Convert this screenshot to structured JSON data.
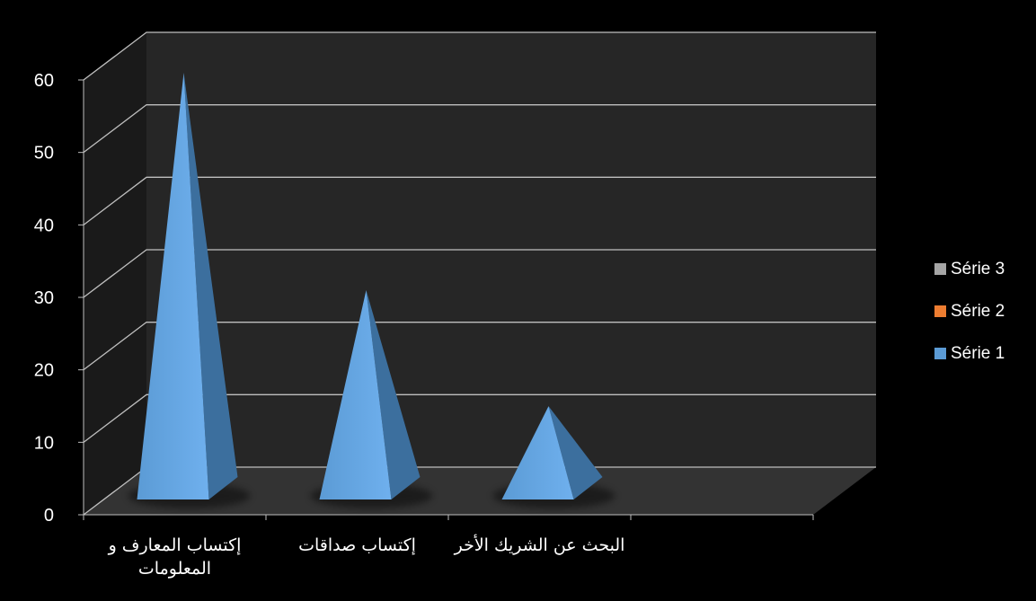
{
  "chart_data": {
    "type": "bar",
    "style": "3d-pyramid",
    "categories": [
      "إكتساب المعارف و المعلومات",
      "إكتساب صداقات",
      "البحث عن الشريك الأخر",
      ""
    ],
    "series": [
      {
        "name": "Série 1",
        "values": [
          60,
          30,
          14,
          null
        ],
        "color": "#5b9bd5"
      },
      {
        "name": "Série 2",
        "values": [
          null,
          null,
          null,
          null
        ],
        "color": "#ed7d31"
      },
      {
        "name": "Série 3",
        "values": [
          null,
          null,
          null,
          null
        ],
        "color": "#a5a5a5"
      }
    ],
    "y_ticks": [
      "0",
      "10",
      "20",
      "30",
      "40",
      "50",
      "60"
    ],
    "ylim": [
      0,
      60
    ],
    "grid": true,
    "legend_position": "right",
    "legend_order": [
      "Série 3",
      "Série 2",
      "Série 1"
    ],
    "background": "#000000",
    "wall_color": "#262626",
    "gridline_color": "#bfbfbf"
  }
}
